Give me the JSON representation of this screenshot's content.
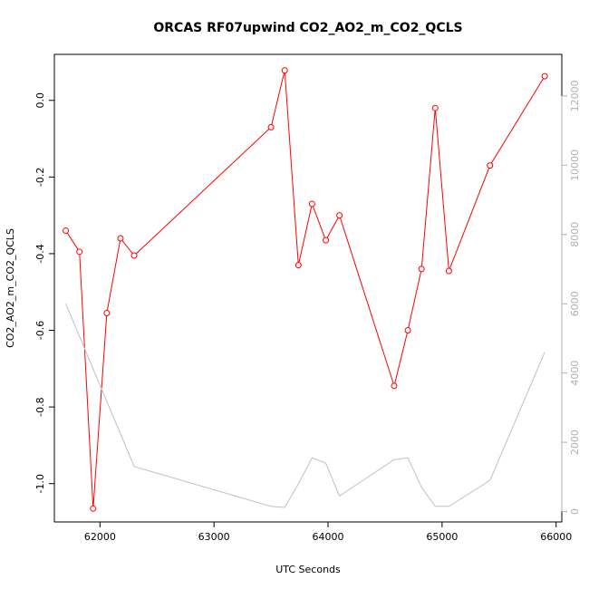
{
  "chart_data": {
    "type": "line",
    "title": "ORCAS RF07upwind CO2_AO2_m_CO2_QCLS",
    "xlabel": "UTC Seconds",
    "ylabel": "CO2_AO2_m_CO2_QCLS",
    "xlim": [
      61600,
      66050
    ],
    "ylim": [
      -1.1,
      0.12
    ],
    "y2lim": [
      -300,
      13200
    ],
    "x_ticks": [
      62000,
      63000,
      64000,
      65000,
      66000
    ],
    "y_ticks": [
      -1.0,
      -0.8,
      -0.6,
      -0.4,
      -0.2,
      0.0
    ],
    "y2_ticks": [
      0,
      2000,
      4000,
      6000,
      8000,
      10000,
      12000
    ],
    "x_tick_labels": [
      "62000",
      "63000",
      "64000",
      "65000",
      "66000"
    ],
    "y_tick_labels": [
      "-1.0",
      "-0.8",
      "-0.6",
      "-0.4",
      "-0.2",
      "0.0"
    ],
    "y2_tick_labels": [
      "0",
      "2000",
      "4000",
      "6000",
      "8000",
      "10000",
      "12000"
    ],
    "grid": false,
    "series": [
      {
        "axis": "left",
        "color": "#ff0000",
        "marker": "open-circle",
        "x": [
          61700,
          61820,
          61940,
          62060,
          62180,
          62300,
          63500,
          63620,
          63740,
          63860,
          63980,
          64100,
          64580,
          64700,
          64820,
          64940,
          65060,
          65420,
          65900
        ],
        "y": [
          -0.34,
          -0.395,
          -1.065,
          -0.555,
          -0.36,
          -0.405,
          -0.07,
          0.078,
          -0.43,
          -0.27,
          -0.365,
          -0.3,
          -0.745,
          -0.6,
          -0.44,
          -0.02,
          -0.445,
          -0.17,
          0.063
        ]
      },
      {
        "axis": "right",
        "color": "#c0c0c0",
        "marker": "none",
        "x": [
          61700,
          62300,
          63500,
          63620,
          63740,
          63860,
          63980,
          64100,
          64580,
          64700,
          64820,
          64940,
          65060,
          65420,
          65900
        ],
        "y": [
          6000,
          1300,
          150,
          120,
          800,
          1550,
          1400,
          450,
          1500,
          1550,
          700,
          150,
          150,
          900,
          4600
        ]
      }
    ]
  }
}
